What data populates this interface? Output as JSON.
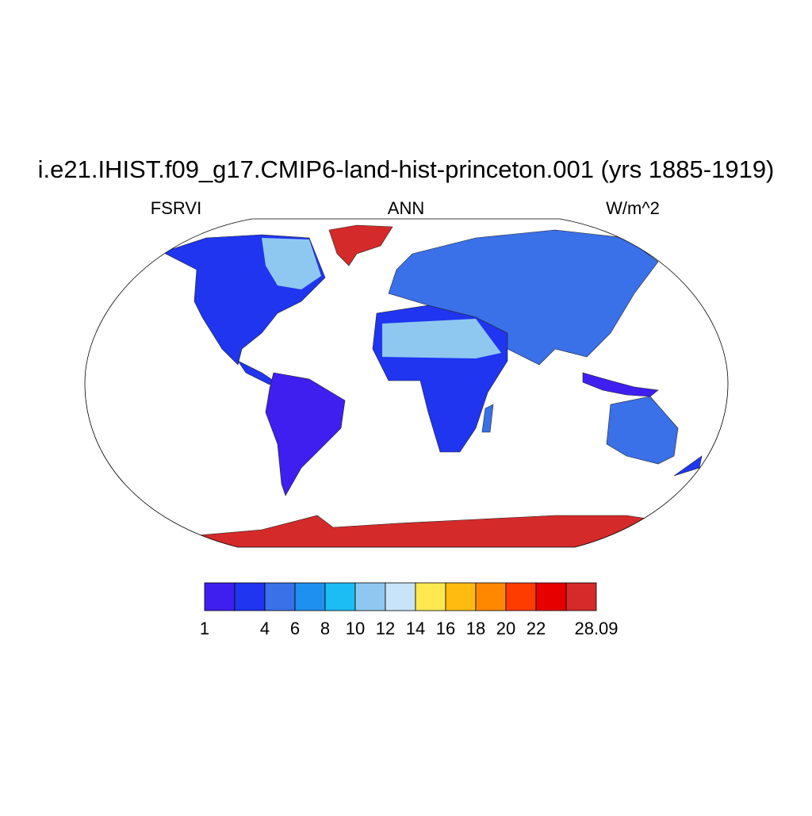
{
  "title": "i.e21.IHIST.f09_g17.CMIP6-land-hist-princeton.001 (yrs 1885-1919)",
  "left_string": "FSRVI",
  "center_string": "ANN",
  "right_string": "W/m^2",
  "colorbar": {
    "colors": [
      "#3f1ff0",
      "#2035f0",
      "#3a70e8",
      "#1e90f0",
      "#1cbcf5",
      "#8ec8f0",
      "#c8e4f8",
      "#ffe94f",
      "#ffbb10",
      "#ff8800",
      "#ff3c00",
      "#e60000",
      "#d42a2a"
    ],
    "levels": [
      1,
      null,
      4,
      6,
      8,
      10,
      12,
      14,
      16,
      18,
      20,
      22,
      null,
      28.09
    ]
  }
}
